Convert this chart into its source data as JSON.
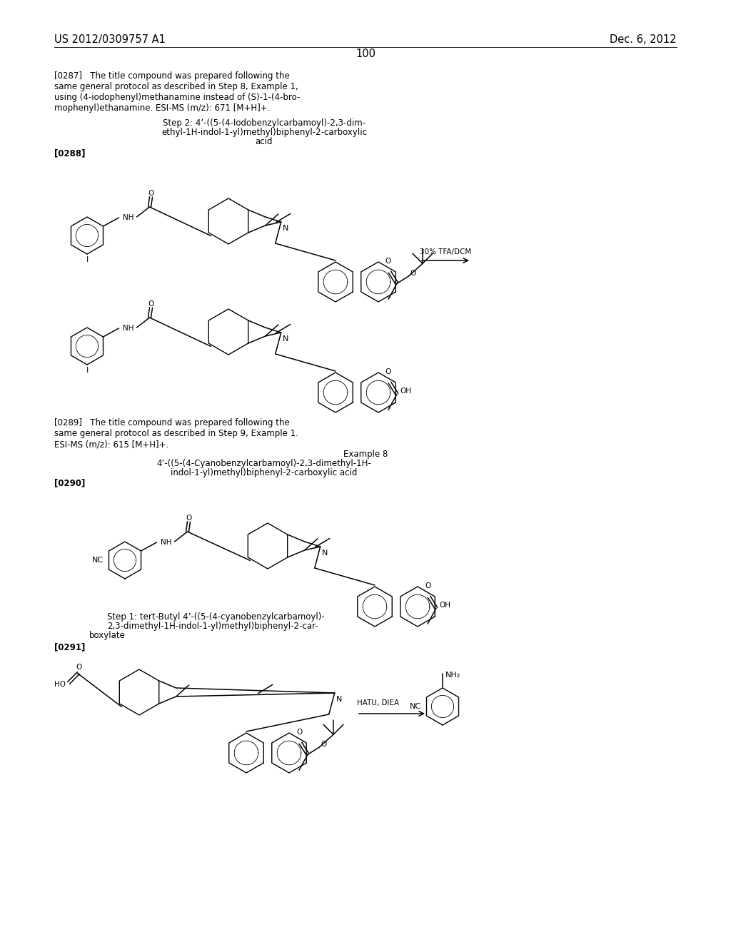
{
  "page_number": "100",
  "left_header": "US 2012/0309757 A1",
  "right_header": "Dec. 6, 2012",
  "background_color": "#ffffff",
  "text_color": "#000000",
  "para_0287": "[0287]   The title compound was prepared following the\nsame general protocol as described in Step 8, Example 1,\nusing (4-iodophenyl)methanamine instead of (S)-1-(4-bro-\nmophenyl)ethanamine. ESI-MS (m/z): 671 [M+H]+.",
  "step2_label_line1": "Step 2: 4’-((5-(4-Iodobenzylcarbamoyl)-2,3-dim-",
  "step2_label_line2": "ethyl-1H-indol-1-yl)methyl)biphenyl-2-carboxylic",
  "step2_label_line3": "acid",
  "tag_0288": "[0288]",
  "arrow_tfa": "30% TFA/DCM",
  "para_0289": "[0289]   The title compound was prepared following the\nsame general protocol as described in Step 9, Example 1.\nESI-MS (m/z): 615 [M+H]+.",
  "example8_line1": "Example 8",
  "example8_line2": "4’-((5-(4-Cyanobenzylcarbamoyl)-2,3-dimethyl-1H-",
  "example8_line3": "indol-1-yl)methyl)biphenyl-2-carboxylic acid",
  "tag_0290": "[0290]",
  "step1_ex8_line1": "Step 1: tert-Butyl 4’-((5-(4-cyanobenzylcarbamoyl)-",
  "step1_ex8_line2": "2,3-dimethyl-1H-indol-1-yl)methyl)biphenyl-2-car-",
  "step1_ex8_line3": "boxylate",
  "tag_0291": "[0291]",
  "hatu_label": "HATU, DIEA"
}
